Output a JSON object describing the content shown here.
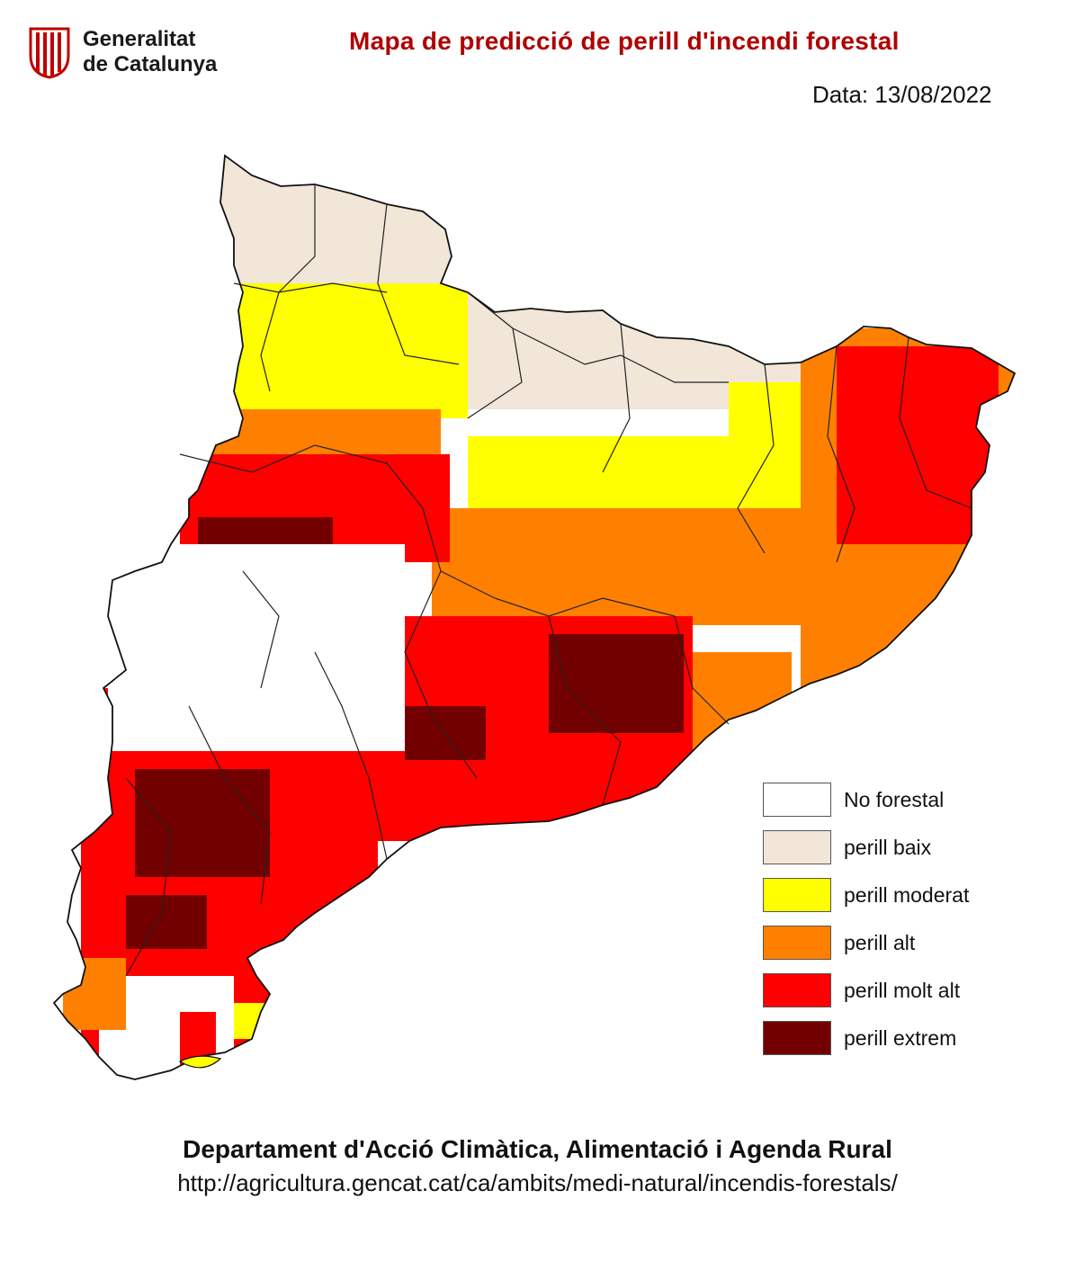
{
  "header": {
    "org_line1": "Generalitat",
    "org_line2": "de Catalunya",
    "title": "Mapa de predicció de perill d'incendi forestal",
    "date": "Data: 13/08/2022"
  },
  "legend": [
    {
      "label": "No forestal",
      "color": "#ffffff",
      "key": "none"
    },
    {
      "label": "perill baix",
      "color": "#f2e6d9",
      "key": "low"
    },
    {
      "label": "perill moderat",
      "color": "#ffff00",
      "key": "moderate"
    },
    {
      "label": "perill alt",
      "color": "#ff8000",
      "key": "high"
    },
    {
      "label": "perill molt alt",
      "color": "#ff0000",
      "key": "veryhigh"
    },
    {
      "label": "perill extrem",
      "color": "#730000",
      "key": "extreme"
    }
  ],
  "footer": {
    "department": "Departament d'Acció Climàtica, Alimentació i Agenda Rural",
    "url": "http://agricultura.gencat.cat/ca/ambits/medi-natural/incendis-forestals/"
  }
}
